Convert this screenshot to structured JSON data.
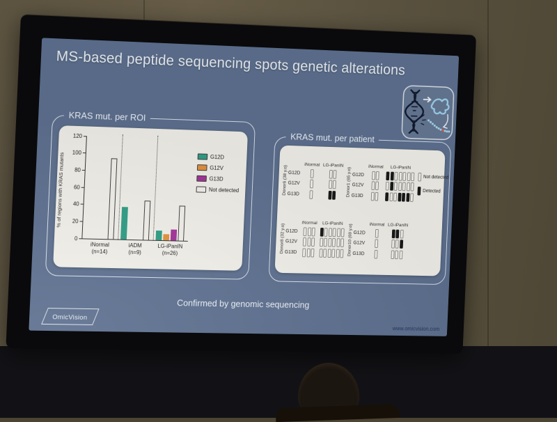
{
  "scene": {
    "wall_color": "#5e5540",
    "bezel_color": "#0a0a0c",
    "lower_background": "#121216",
    "person": "audience-member-silhouette"
  },
  "slide": {
    "background_color": "#5e7190",
    "title": "MS-based peptide sequencing spots genetic alterations",
    "footer_note": "Confirmed by genomic sequencing",
    "logo_text": "OmicVision",
    "website": "www.omicvision.com",
    "dna_icon": "dna-mutation-to-protein-peptide-icon"
  },
  "chart_data": [
    {
      "type": "bar",
      "title": "KRAS mut. per ROI",
      "ylabel": "% of regions with KRAS mutants",
      "ylim": [
        0,
        120
      ],
      "yticks": [
        0,
        20,
        40,
        60,
        80,
        100,
        120
      ],
      "grid": false,
      "legend_position": "right",
      "categories": [
        "iNormal",
        "iADM",
        "LG-iPanIN"
      ],
      "category_counts": [
        "(n=14)",
        "(n=9)",
        "(n=26)"
      ],
      "series": [
        {
          "name": "G12D",
          "color": "#2f9e86",
          "outlined": false,
          "values": [
            0,
            38,
            11
          ]
        },
        {
          "name": "G12V",
          "color": "#e2913e",
          "outlined": false,
          "values": [
            0,
            0,
            7
          ]
        },
        {
          "name": "G13D",
          "color": "#a23399",
          "outlined": false,
          "values": [
            0,
            0,
            13
          ]
        },
        {
          "name": "Not detected",
          "color": "#f2f0ea",
          "outlined": true,
          "values": [
            95,
            46,
            41
          ]
        }
      ]
    },
    {
      "type": "heatmap",
      "title": "KRAS mut. per patient",
      "rows": [
        "G12D",
        "G12V",
        "G13D"
      ],
      "cell_legend": [
        {
          "label": "Not detected",
          "value": 0
        },
        {
          "label": "Detected",
          "value": 1
        }
      ],
      "donors": [
        {
          "name": "Donor6 (38 y.o)",
          "groups": [
            {
              "label": "iNormal",
              "cells": [
                [
                  0
                ],
                [
                  0
                ],
                [
                  0
                ]
              ]
            },
            {
              "label": "LG-iPanIN",
              "cells": [
                [
                  0,
                  0
                ],
                [
                  0,
                  0
                ],
                [
                  1,
                  1
                ]
              ]
            }
          ]
        },
        {
          "name": "Donor1 (65 y.o)",
          "groups": [
            {
              "label": "iNormal",
              "cells": [
                [
                  0,
                  0
                ],
                [
                  0,
                  0
                ],
                [
                  0,
                  0
                ]
              ]
            },
            {
              "label": "LG-iPanIN",
              "cells": [
                [
                  1,
                  1,
                  0,
                  0,
                  0,
                  0,
                  0
                ],
                [
                  0,
                  1,
                  0,
                  0,
                  0,
                  0,
                  0
                ],
                [
                  1,
                  0,
                  0,
                  1,
                  1,
                  1,
                  0
                ]
              ]
            }
          ]
        },
        {
          "name": "Donor8 (32 y.o)",
          "groups": [
            {
              "label": "iNormal",
              "cells": [
                [
                  0,
                  0,
                  0
                ],
                [
                  0,
                  0,
                  0
                ],
                [
                  0,
                  0,
                  0
                ]
              ]
            },
            {
              "label": "LG-iPanIN",
              "cells": [
                [
                  1,
                  0,
                  0,
                  0,
                  0,
                  0
                ],
                [
                  0,
                  0,
                  0,
                  0,
                  0,
                  0
                ],
                [
                  0,
                  0,
                  0,
                  0,
                  0,
                  0
                ]
              ]
            }
          ]
        },
        {
          "name": "Donor10 (69 y.o)",
          "groups": [
            {
              "label": "iNormal",
              "cells": [
                [
                  0
                ],
                [
                  0
                ],
                [
                  0
                ]
              ]
            },
            {
              "label": "LG-iPanIN",
              "cells": [
                [
                  1,
                  1,
                  0
                ],
                [
                  0,
                  0,
                  1
                ],
                [
                  0,
                  0,
                  0
                ]
              ]
            }
          ]
        }
      ]
    }
  ]
}
